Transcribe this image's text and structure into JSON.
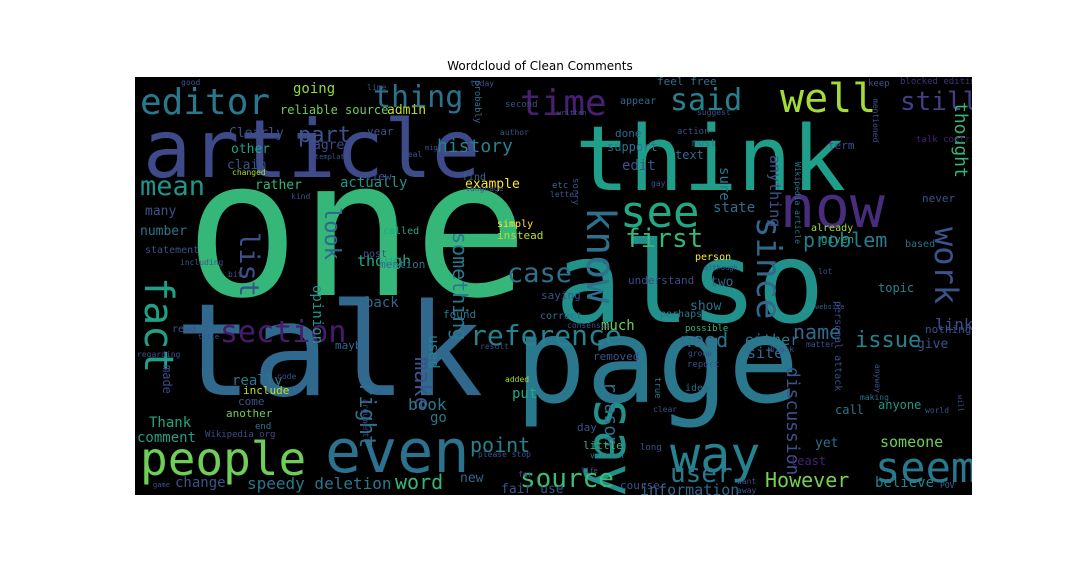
{
  "title": "Wordcloud of Clean Comments",
  "background_color": "#000000",
  "words": [
    {
      "text": "one",
      "color": "#35b779"
    },
    {
      "text": "talk",
      "color": "#31688e"
    },
    {
      "text": "page",
      "color": "#2a788e"
    },
    {
      "text": "also",
      "color": "#21918c"
    },
    {
      "text": "article",
      "color": "#3e4a89"
    },
    {
      "text": "think",
      "color": "#1f9e89"
    },
    {
      "text": "now",
      "color": "#472d7b"
    },
    {
      "text": "people",
      "color": "#6ece58"
    },
    {
      "text": "even",
      "color": "#2c718e"
    },
    {
      "text": "say",
      "color": "#21918c"
    },
    {
      "text": "way",
      "color": "#26828e"
    },
    {
      "text": "seem",
      "color": "#2a788e"
    },
    {
      "text": "editor",
      "color": "#2a788e"
    },
    {
      "text": "well",
      "color": "#a5db36"
    },
    {
      "text": "time",
      "color": "#482071"
    },
    {
      "text": "fact",
      "color": "#1fa188"
    },
    {
      "text": "see",
      "color": "#22a884"
    },
    {
      "text": "know",
      "color": "#2c718e"
    },
    {
      "text": "since",
      "color": "#31688e"
    },
    {
      "text": "work",
      "color": "#3b528b"
    },
    {
      "text": "said",
      "color": "#26828e"
    },
    {
      "text": "thing",
      "color": "#2c718e"
    },
    {
      "text": "mean",
      "color": "#1f968b"
    },
    {
      "text": "list",
      "color": "#3b528b"
    },
    {
      "text": "section",
      "color": "#481b6d"
    },
    {
      "text": "reference",
      "color": "#26828e"
    },
    {
      "text": "first",
      "color": "#35b779"
    },
    {
      "text": "case",
      "color": "#2c718e"
    },
    {
      "text": "source",
      "color": "#3dbc74"
    },
    {
      "text": "user",
      "color": "#2a788e"
    },
    {
      "text": "still",
      "color": "#433e85"
    },
    {
      "text": "problem",
      "color": "#287c8e"
    },
    {
      "text": "However",
      "color": "#75d054"
    },
    {
      "text": "word",
      "color": "#35b779"
    },
    {
      "text": "point",
      "color": "#26828e"
    },
    {
      "text": "make",
      "color": "#3b528b"
    },
    {
      "text": "right",
      "color": "#2c718e"
    },
    {
      "text": "something",
      "color": "#2a788e"
    },
    {
      "text": "look",
      "color": "#31688e"
    },
    {
      "text": "part",
      "color": "#3b528b"
    },
    {
      "text": "issue",
      "color": "#26828e"
    },
    {
      "text": "name",
      "color": "#31688e"
    },
    {
      "text": "need",
      "color": "#2c718e"
    },
    {
      "text": "link",
      "color": "#3e4a89"
    },
    {
      "text": "thought",
      "color": "#35b779"
    },
    {
      "text": "history",
      "color": "#26828e"
    },
    {
      "text": "discussion",
      "color": "#3b528b"
    },
    {
      "text": "reason",
      "color": "#2c718e"
    },
    {
      "text": "book",
      "color": "#2a788e"
    },
    {
      "text": "speedy deletion",
      "color": "#2a788e"
    },
    {
      "text": "information",
      "color": "#31688e"
    },
    {
      "text": "someone",
      "color": "#6ece58"
    },
    {
      "text": "comment",
      "color": "#1f9e89"
    },
    {
      "text": "Thank",
      "color": "#22a884"
    },
    {
      "text": "change",
      "color": "#3b528b"
    },
    {
      "text": "believe",
      "color": "#26828e"
    },
    {
      "text": "going",
      "color": "#90d743"
    },
    {
      "text": "admin",
      "color": "#c2df23"
    },
    {
      "text": "reliable source",
      "color": "#6ece58"
    },
    {
      "text": "actually",
      "color": "#1f968b"
    },
    {
      "text": "rather",
      "color": "#35b779"
    },
    {
      "text": "agree",
      "color": "#3e4a89"
    },
    {
      "text": "claim",
      "color": "#3b528b"
    },
    {
      "text": "other",
      "color": "#1fa188"
    },
    {
      "text": "Clearly",
      "color": "#3b528b"
    },
    {
      "text": "example",
      "color": "#fde725"
    },
    {
      "text": "edit",
      "color": "#3b528b"
    },
    {
      "text": "sure",
      "color": "#2a788e"
    },
    {
      "text": "anything",
      "color": "#3b528b"
    },
    {
      "text": "much",
      "color": "#6ece58"
    },
    {
      "text": "either",
      "color": "#2a788e"
    },
    {
      "text": "two",
      "color": "#31688e"
    },
    {
      "text": "show",
      "color": "#2c718e"
    },
    {
      "text": "state",
      "color": "#2c718e"
    },
    {
      "text": "number",
      "color": "#2a788e"
    },
    {
      "text": "many",
      "color": "#3b528b"
    },
    {
      "text": "opinion",
      "color": "#1f968b"
    },
    {
      "text": "though",
      "color": "#22a884"
    },
    {
      "text": "back",
      "color": "#31688e"
    },
    {
      "text": "used",
      "color": "#26828e"
    },
    {
      "text": "maybe",
      "color": "#31688e"
    },
    {
      "text": "really",
      "color": "#2a788e"
    },
    {
      "text": "site",
      "color": "#31688e"
    },
    {
      "text": "put",
      "color": "#22a884"
    },
    {
      "text": "fair use",
      "color": "#3b528b"
    },
    {
      "text": "new",
      "color": "#31688e"
    },
    {
      "text": "made",
      "color": "#3e4a89"
    },
    {
      "text": "include",
      "color": "#bddf26"
    },
    {
      "text": "another",
      "color": "#6ece58"
    },
    {
      "text": "come",
      "color": "#3b528b"
    },
    {
      "text": "personal attack",
      "color": "#3e4a89"
    },
    {
      "text": "topic",
      "color": "#26828e"
    },
    {
      "text": "anyone",
      "color": "#1f968b"
    },
    {
      "text": "give",
      "color": "#3b528b"
    },
    {
      "text": "nothing",
      "color": "#3b528b"
    },
    {
      "text": "call",
      "color": "#2a788e"
    },
    {
      "text": "yet",
      "color": "#2c718e"
    },
    {
      "text": "least",
      "color": "#482071"
    },
    {
      "text": "already",
      "color": "#a5db36"
    },
    {
      "text": "given",
      "color": "#22a884"
    },
    {
      "text": "never",
      "color": "#3b528b"
    },
    {
      "text": "person",
      "color": "#fde725"
    },
    {
      "text": "understand",
      "color": "#3e4a89"
    },
    {
      "text": "perhaps",
      "color": "#2a788e"
    },
    {
      "text": "possible",
      "color": "#35b779"
    },
    {
      "text": "correct",
      "color": "#2c718e"
    },
    {
      "text": "found",
      "color": "#2a788e"
    },
    {
      "text": "saying",
      "color": "#3b528b"
    },
    {
      "text": "instead",
      "color": "#b5de2b"
    },
    {
      "text": "simply",
      "color": "#fde725"
    },
    {
      "text": "called",
      "color": "#22a884"
    },
    {
      "text": "post",
      "color": "#3b528b"
    },
    {
      "text": "mention",
      "color": "#2c718e"
    },
    {
      "text": "view",
      "color": "#3b528b"
    },
    {
      "text": "year",
      "color": "#3b528b"
    },
    {
      "text": "done",
      "color": "#31688e"
    },
    {
      "text": "support",
      "color": "#2c718e"
    },
    {
      "text": "text",
      "color": "#31688e"
    },
    {
      "text": "term",
      "color": "#3b528b"
    },
    {
      "text": "removed",
      "color": "#3b528b"
    },
    {
      "text": "little",
      "color": "#35b779"
    },
    {
      "text": "day",
      "color": "#3b528b"
    },
    {
      "text": "course",
      "color": "#3b528b"
    },
    {
      "text": "feel free",
      "color": "#2c718e"
    },
    {
      "text": "appear",
      "color": "#31688e"
    },
    {
      "text": "keep",
      "color": "#3b528b"
    },
    {
      "text": "blocked editing",
      "color": "#472d7b"
    },
    {
      "text": "talk contrib",
      "color": "#482071"
    },
    {
      "text": "probably",
      "color": "#2c718e"
    },
    {
      "text": "second",
      "color": "#3b528b"
    },
    {
      "text": "must",
      "color": "#2a788e"
    },
    {
      "text": "action",
      "color": "#3b528b"
    },
    {
      "text": "based",
      "color": "#2c718e"
    },
    {
      "text": "Wikipedia article",
      "color": "#2a788e"
    },
    {
      "text": "Wikipedia org",
      "color": "#3e4a89"
    },
    {
      "text": "find",
      "color": "#31688e"
    },
    {
      "text": "language",
      "color": "#3b528b"
    },
    {
      "text": "etc",
      "color": "#31688e"
    },
    {
      "text": "letter",
      "color": "#3b528b"
    },
    {
      "text": "code",
      "color": "#3b528b"
    },
    {
      "text": "end",
      "color": "#2a788e"
    },
    {
      "text": "argument",
      "color": "#3e4a89"
    },
    {
      "text": "added",
      "color": "#a5db36"
    },
    {
      "text": "result",
      "color": "#3e4a89"
    },
    {
      "text": "consensus",
      "color": "#3b528b"
    },
    {
      "text": "group",
      "color": "#3b528b"
    },
    {
      "text": "report",
      "color": "#3b528b"
    },
    {
      "text": "idea",
      "color": "#31688e"
    },
    {
      "text": "true",
      "color": "#2c718e"
    },
    {
      "text": "clear",
      "color": "#3b528b"
    },
    {
      "text": "making",
      "color": "#2c718e"
    },
    {
      "text": "world",
      "color": "#3b528b"
    },
    {
      "text": "version",
      "color": "#2a788e"
    },
    {
      "text": "please stop",
      "color": "#3b528b"
    },
    {
      "text": "want",
      "color": "#3b528b"
    },
    {
      "text": "away",
      "color": "#3b528b"
    },
    {
      "text": "POV",
      "color": "#31688e"
    },
    {
      "text": "game",
      "color": "#3b528b"
    },
    {
      "text": "statement",
      "color": "#3b528b"
    },
    {
      "text": "kind",
      "color": "#3b528b"
    },
    {
      "text": "changed",
      "color": "#a5db36"
    },
    {
      "text": "bit",
      "color": "#3b528b"
    },
    {
      "text": "including",
      "color": "#3b528b"
    },
    {
      "text": "good",
      "color": "#3b528b"
    },
    {
      "text": "line",
      "color": "#3b528b"
    },
    {
      "text": "today",
      "color": "#3b528b"
    },
    {
      "text": "written",
      "color": "#3b528b"
    },
    {
      "text": "suggest",
      "color": "#3b528b"
    },
    {
      "text": "mentioned",
      "color": "#3b528b"
    },
    {
      "text": "sorry",
      "color": "#3b528b"
    },
    {
      "text": "author",
      "color": "#3b528b"
    },
    {
      "text": "might",
      "color": "#3b528b"
    },
    {
      "text": "regarding",
      "color": "#3b528b"
    },
    {
      "text": "website",
      "color": "#3b528b"
    },
    {
      "text": "lot",
      "color": "#3b528b"
    },
    {
      "text": "matter",
      "color": "#3b528b"
    },
    {
      "text": "block",
      "color": "#3b528b"
    },
    {
      "text": "anyway",
      "color": "#3b528b"
    },
    {
      "text": "will",
      "color": "#3b528b"
    },
    {
      "text": "although",
      "color": "#3b528b"
    },
    {
      "text": "gay",
      "color": "#3b528b"
    },
    {
      "text": "life",
      "color": "#3b528b"
    },
    {
      "text": "far",
      "color": "#3b528b"
    },
    {
      "text": "long",
      "color": "#3b528b"
    },
    {
      "text": "real",
      "color": "#3b528b"
    },
    {
      "text": "template",
      "color": "#3b528b"
    },
    {
      "text": "read",
      "color": "#3b528b"
    },
    {
      "text": "title",
      "color": "#3b528b"
    },
    {
      "text": "go",
      "color": "#2a788e"
    }
  ]
}
